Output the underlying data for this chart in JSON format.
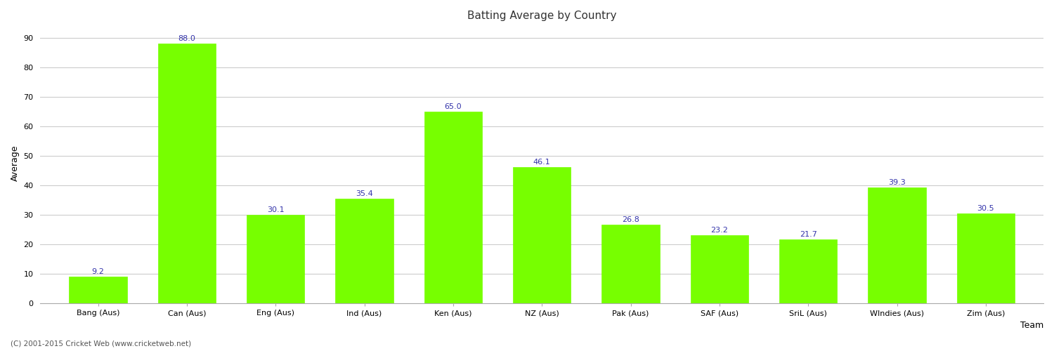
{
  "title": "Batting Average by Country",
  "xlabel": "Team",
  "ylabel": "Average",
  "categories": [
    "Bang (Aus)",
    "Can (Aus)",
    "Eng (Aus)",
    "Ind (Aus)",
    "Ken (Aus)",
    "NZ (Aus)",
    "Pak (Aus)",
    "SAF (Aus)",
    "SriL (Aus)",
    "WIndies (Aus)",
    "Zim (Aus)"
  ],
  "values": [
    9.2,
    88.0,
    30.1,
    35.4,
    65.0,
    46.1,
    26.8,
    23.2,
    21.7,
    39.3,
    30.5
  ],
  "bar_color": "#77ff00",
  "bar_edge_color": "#77ff00",
  "value_color": "#3333aa",
  "value_fontsize": 8,
  "ylim": [
    0,
    95
  ],
  "yticks": [
    0,
    10,
    20,
    30,
    40,
    50,
    60,
    70,
    80,
    90
  ],
  "grid_color": "#cccccc",
  "background_color": "#ffffff",
  "title_fontsize": 11,
  "axis_label_fontsize": 9,
  "tick_fontsize": 8,
  "footer_text": "(C) 2001-2015 Cricket Web (www.cricketweb.net)",
  "footer_fontsize": 7.5,
  "footer_color": "#555555"
}
